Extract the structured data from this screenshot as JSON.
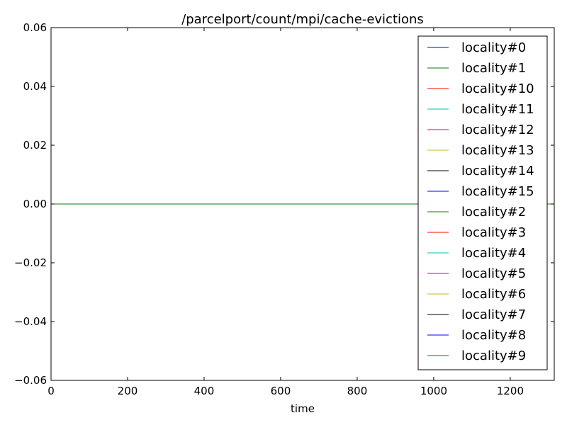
{
  "chart_data": {
    "type": "line",
    "title": "/parcelport/count/mpi/cache-evictions",
    "xlabel": "time",
    "ylabel": "",
    "xlim": [
      0,
      1315
    ],
    "ylim": [
      -0.06,
      0.06
    ],
    "x_ticks": [
      0,
      200,
      400,
      600,
      800,
      1000,
      1200
    ],
    "y_ticks": [
      0.06,
      0.04,
      0.02,
      0.0,
      -0.02,
      -0.04,
      -0.06
    ],
    "x_tick_labels": [
      "0",
      "200",
      "400",
      "600",
      "800",
      "1000",
      "1200"
    ],
    "y_tick_labels": [
      "0.06",
      "0.04",
      "0.02",
      "0.00",
      "−0.02",
      "−0.04",
      "−0.06"
    ],
    "grid": false,
    "legend_position": "top-right",
    "x": [
      0,
      1315
    ],
    "series": [
      {
        "name": "locality#0",
        "color": "#0000ff",
        "values": [
          0,
          0
        ]
      },
      {
        "name": "locality#1",
        "color": "#008000",
        "values": [
          0,
          0
        ]
      },
      {
        "name": "locality#10",
        "color": "#ff0000",
        "values": [
          0,
          0
        ]
      },
      {
        "name": "locality#11",
        "color": "#00bfbf",
        "values": [
          0,
          0
        ]
      },
      {
        "name": "locality#12",
        "color": "#bf00bf",
        "values": [
          0,
          0
        ]
      },
      {
        "name": "locality#13",
        "color": "#bfbf00",
        "values": [
          0,
          0
        ]
      },
      {
        "name": "locality#14",
        "color": "#000000",
        "values": [
          0,
          0
        ]
      },
      {
        "name": "locality#15",
        "color": "#0000ff",
        "values": [
          0,
          0
        ]
      },
      {
        "name": "locality#2",
        "color": "#008000",
        "values": [
          0,
          0
        ]
      },
      {
        "name": "locality#3",
        "color": "#ff0000",
        "values": [
          0,
          0
        ]
      },
      {
        "name": "locality#4",
        "color": "#00bfbf",
        "values": [
          0,
          0
        ]
      },
      {
        "name": "locality#5",
        "color": "#bf00bf",
        "values": [
          0,
          0
        ]
      },
      {
        "name": "locality#6",
        "color": "#bfbf00",
        "values": [
          0,
          0
        ]
      },
      {
        "name": "locality#7",
        "color": "#000000",
        "values": [
          0,
          0
        ]
      },
      {
        "name": "locality#8",
        "color": "#0000ff",
        "values": [
          0,
          0
        ]
      },
      {
        "name": "locality#9",
        "color": "#008000",
        "values": [
          0,
          0
        ]
      }
    ]
  }
}
